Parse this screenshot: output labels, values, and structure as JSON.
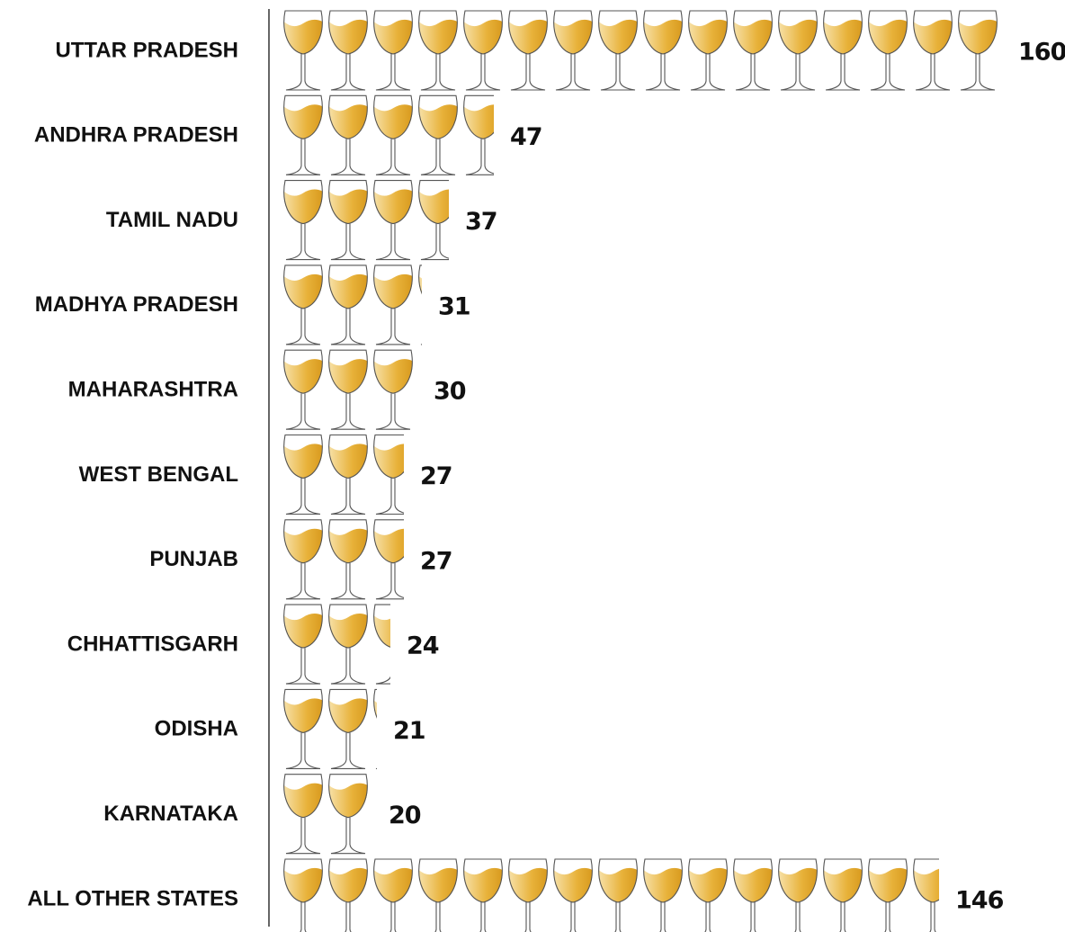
{
  "chart_data": {
    "type": "pictograph",
    "categories": [
      "UTTAR PRADESH",
      "ANDHRA PRADESH",
      "TAMIL NADU",
      "MADHYA PRADESH",
      "MAHARASHTRA",
      "WEST BENGAL",
      "PUNJAB",
      "CHHATTISGARH",
      "ODISHA",
      "KARNATAKA",
      "ALL OTHER STATES"
    ],
    "values": [
      160,
      47,
      37,
      31,
      30,
      27,
      27,
      24,
      21,
      20,
      146
    ],
    "color": "#e8b23a"
  }
}
